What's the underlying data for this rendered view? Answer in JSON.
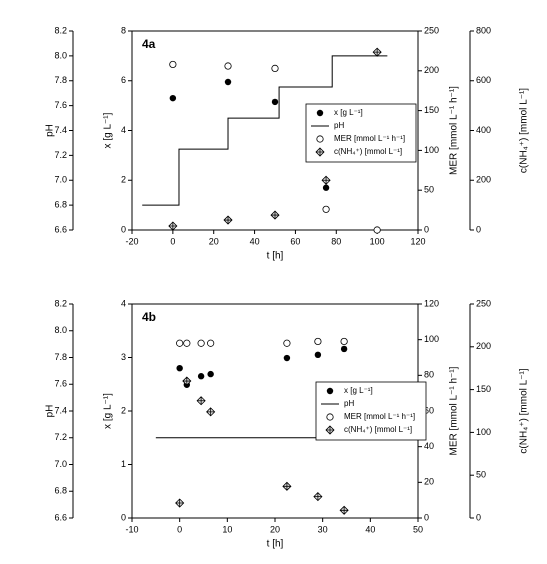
{
  "chart_data": [
    {
      "type": "scatter",
      "panel_label": "4a",
      "xlabel": "t [h]",
      "xlim": [
        -20,
        120
      ],
      "xticks": [
        -20,
        0,
        20,
        40,
        60,
        80,
        100,
        120
      ],
      "ylabel": "x [g L⁻¹]",
      "ylim": [
        0,
        8
      ],
      "yticks": [
        0,
        2,
        4,
        6,
        8
      ],
      "y2label": "MER [mmol L⁻¹ h⁻¹]",
      "y2lim": [
        0,
        250
      ],
      "y2ticks": [
        0,
        50,
        100,
        150,
        200,
        250
      ],
      "y3label": "c(NH₄⁺) [mmol L⁻¹]",
      "y3lim": [
        0,
        800
      ],
      "y3ticks": [
        0,
        200,
        400,
        600,
        800
      ],
      "y4label": "pH",
      "y4lim": [
        6.6,
        8.2
      ],
      "y4ticks": [
        6.6,
        6.8,
        {
          "value": 7,
          "label": "7.0"
        },
        7.2,
        7.4,
        7.6,
        7.8,
        {
          "value": 8,
          "label": "8.0"
        },
        8.2
      ],
      "series": [
        {
          "name": "x [g L⁻¹]",
          "marker": "filled-circle",
          "color": "#000000",
          "axis": "y",
          "x": [
            0,
            27,
            50,
            75
          ],
          "values": [
            5.3,
            5.95,
            5.15,
            1.7
          ]
        },
        {
          "name": "pH",
          "marker": "line",
          "color": "#000000",
          "axis": "y4",
          "x": [
            -15,
            3,
            3,
            27,
            27,
            52,
            52,
            78,
            78,
            105
          ],
          "values": [
            6.8,
            6.8,
            7.25,
            7.25,
            7.5,
            7.5,
            7.75,
            7.75,
            8.0,
            8.0
          ]
        },
        {
          "name": "MER [mmol L⁻¹ h⁻¹]",
          "marker": "open-circle",
          "color": "#000000",
          "axis": "y2",
          "x": [
            0,
            27,
            50,
            75,
            100
          ],
          "values": [
            208,
            206,
            203,
            26,
            0
          ]
        },
        {
          "name": "c(NH₄⁺) [mmol L⁻¹]",
          "marker": "crossed-diamond",
          "color": "#000000",
          "axis": "y3",
          "x": [
            0,
            27,
            50,
            75,
            100
          ],
          "values": [
            16,
            40,
            60,
            200,
            715
          ]
        }
      ]
    },
    {
      "type": "scatter",
      "panel_label": "4b",
      "xlabel": "t [h]",
      "xlim": [
        -10,
        50
      ],
      "xticks": [
        -10,
        0,
        10,
        20,
        30,
        40,
        50
      ],
      "ylabel": "x [g L⁻¹]",
      "ylim": [
        0,
        4
      ],
      "yticks": [
        0,
        1,
        2,
        3,
        4
      ],
      "y2label": "MER [mmol L⁻¹ h⁻¹]",
      "y2lim": [
        0,
        120
      ],
      "y2ticks": [
        0,
        20,
        40,
        60,
        80,
        100,
        120
      ],
      "y3label": "c(NH₄⁺) [mmol L⁻¹]",
      "y3lim": [
        0,
        250
      ],
      "y3ticks": [
        0,
        50,
        100,
        150,
        200,
        250
      ],
      "y4label": "pH",
      "y4lim": [
        6.6,
        8.2
      ],
      "y4ticks": [
        6.6,
        6.8,
        {
          "value": 7,
          "label": "7.0"
        },
        7.2,
        7.4,
        7.6,
        7.8,
        {
          "value": 8,
          "label": "8.0"
        },
        8.2
      ],
      "series": [
        {
          "name": "x [g L⁻¹]",
          "marker": "filled-circle",
          "color": "#000000",
          "axis": "y",
          "x": [
            0,
            1.5,
            4.5,
            6.5,
            22.5,
            29,
            34.5
          ],
          "values": [
            2.8,
            2.49,
            2.65,
            2.69,
            2.99,
            3.05,
            3.16
          ]
        },
        {
          "name": "pH",
          "marker": "line",
          "color": "#000000",
          "axis": "y4",
          "x": [
            -5,
            40
          ],
          "values": [
            7.2,
            7.2
          ]
        },
        {
          "name": "MER [mmol L⁻¹ h⁻¹]",
          "marker": "open-circle",
          "color": "#000000",
          "axis": "y2",
          "x": [
            0,
            1.5,
            4.5,
            6.5,
            22.5,
            29,
            34.5
          ],
          "values": [
            98,
            98,
            98,
            98,
            98,
            99,
            99
          ]
        },
        {
          "name": "c(NH₄⁺) [mmol L⁻¹]",
          "marker": "crossed-diamond",
          "color": "#000000",
          "axis": "y3",
          "x": [
            0,
            1.5,
            4.5,
            6.5,
            22.5,
            29,
            34.5
          ],
          "values": [
            17.5,
            160,
            137,
            124,
            37,
            25,
            9
          ]
        }
      ]
    }
  ]
}
